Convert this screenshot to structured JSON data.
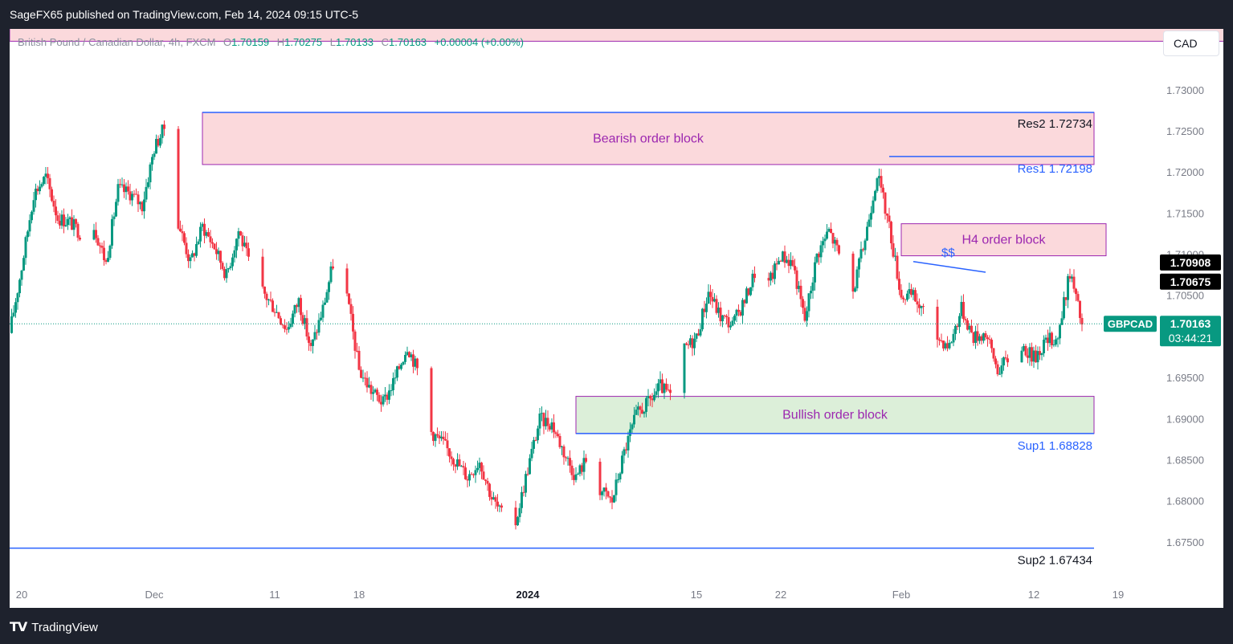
{
  "header": {
    "byline": "SageFX65 published on TradingView.com, Feb 14, 2024 09:15 UTC-5"
  },
  "footer": {
    "brand": "TradingView"
  },
  "toolbar": {
    "currency": "CAD"
  },
  "legend": {
    "instrument": "British Pound / Canadian Dollar, 4h, FXCM",
    "o_label": "O",
    "o": "1.70159",
    "h_label": "H",
    "h": "1.70275",
    "l_label": "L",
    "l": "1.70133",
    "c_label": "C",
    "c": "1.70163",
    "change": "+0.00004 (+0.00%)"
  },
  "colors": {
    "up": "#089981",
    "down": "#f23645",
    "bearish_zone": "#fbd9dc",
    "bullish_zone": "#dcefd9",
    "zone_border": "#9c27b0",
    "level_line": "#2962ff",
    "zone_text": "#9c27b0",
    "res_text": "#131722",
    "blue_text": "#2962ff"
  },
  "chart_data": {
    "type": "candlestick",
    "symbol": "GBPCAD",
    "timeframe": "4h",
    "ylim": [
      1.67,
      1.7375
    ],
    "y_ticks": [
      "1.67500",
      "1.68000",
      "1.68500",
      "1.69000",
      "1.69500",
      "1.70000",
      "1.70500",
      "1.71000",
      "1.71500",
      "1.72000",
      "1.72500",
      "1.73000"
    ],
    "x_range": [
      "2023-11-19",
      "2024-02-21"
    ],
    "x_ticks": [
      {
        "date": "2023-11-20",
        "label": "20",
        "bold": false
      },
      {
        "date": "2023-12-01",
        "label": "Dec",
        "bold": false
      },
      {
        "date": "2023-12-11",
        "label": "11",
        "bold": false
      },
      {
        "date": "2023-12-18",
        "label": "18",
        "bold": false
      },
      {
        "date": "2024-01-01",
        "label": "2024",
        "bold": true
      },
      {
        "date": "2024-01-15",
        "label": "15",
        "bold": false
      },
      {
        "date": "2024-01-22",
        "label": "22",
        "bold": false
      },
      {
        "date": "2024-02-01",
        "label": "Feb",
        "bold": false
      },
      {
        "date": "2024-02-12",
        "label": "12",
        "bold": false
      },
      {
        "date": "2024-02-19",
        "label": "19",
        "bold": false
      }
    ],
    "close_path": [
      [
        "2023-11-19",
        1.7005
      ],
      [
        "2023-11-20",
        1.7085
      ],
      [
        "2023-11-21",
        1.7175
      ],
      [
        "2023-11-22",
        1.7195
      ],
      [
        "2023-11-23",
        1.7145
      ],
      [
        "2023-11-24",
        1.714
      ],
      [
        "2023-11-25",
        1.7125
      ],
      [
        "2023-11-26",
        1.7135
      ],
      [
        "2023-11-27",
        1.709
      ],
      [
        "2023-11-28",
        1.718
      ],
      [
        "2023-11-29",
        1.7175
      ],
      [
        "2023-11-30",
        1.716
      ],
      [
        "2023-12-01",
        1.723
      ],
      [
        "2023-12-02",
        1.726
      ],
      [
        "2023-12-03",
        1.714
      ],
      [
        "2023-12-04",
        1.709
      ],
      [
        "2023-12-05",
        1.7135
      ],
      [
        "2023-12-06",
        1.711
      ],
      [
        "2023-12-07",
        1.7075
      ],
      [
        "2023-12-08",
        1.713
      ],
      [
        "2023-12-09",
        1.7085
      ],
      [
        "2023-12-10",
        1.7055
      ],
      [
        "2023-12-11",
        1.7035
      ],
      [
        "2023-12-12",
        1.701
      ],
      [
        "2023-12-13",
        1.7045
      ],
      [
        "2023-12-14",
        1.6985
      ],
      [
        "2023-12-15",
        1.7035
      ],
      [
        "2023-12-16",
        1.71
      ],
      [
        "2023-12-17",
        1.705
      ],
      [
        "2023-12-18",
        1.696
      ],
      [
        "2023-12-19",
        1.6935
      ],
      [
        "2023-12-20",
        1.692
      ],
      [
        "2023-12-21",
        1.695
      ],
      [
        "2023-12-22",
        1.699
      ],
      [
        "2023-12-23",
        1.6955
      ],
      [
        "2023-12-24",
        1.6885
      ],
      [
        "2023-12-25",
        1.687
      ],
      [
        "2023-12-26",
        1.685
      ],
      [
        "2023-12-27",
        1.683
      ],
      [
        "2023-12-28",
        1.685
      ],
      [
        "2023-12-29",
        1.6805
      ],
      [
        "2023-12-30",
        1.678
      ],
      [
        "2023-12-31",
        1.6775
      ],
      [
        "2024-01-01",
        1.684
      ],
      [
        "2024-01-02",
        1.69
      ],
      [
        "2024-01-03",
        1.6895
      ],
      [
        "2024-01-04",
        1.686
      ],
      [
        "2024-01-05",
        1.683
      ],
      [
        "2024-01-06",
        1.6855
      ],
      [
        "2024-01-07",
        1.6815
      ],
      [
        "2024-01-08",
        1.68
      ],
      [
        "2024-01-09",
        1.686
      ],
      [
        "2024-01-10",
        1.6905
      ],
      [
        "2024-01-11",
        1.692
      ],
      [
        "2024-01-12",
        1.694
      ],
      [
        "2024-01-13",
        1.6925
      ],
      [
        "2024-01-14",
        1.6985
      ],
      [
        "2024-01-15",
        1.7
      ],
      [
        "2024-01-16",
        1.7055
      ],
      [
        "2024-01-17",
        1.7025
      ],
      [
        "2024-01-18",
        1.7015
      ],
      [
        "2024-01-19",
        1.7045
      ],
      [
        "2024-01-20",
        1.7085
      ],
      [
        "2024-01-21",
        1.7065
      ],
      [
        "2024-01-22",
        1.71
      ],
      [
        "2024-01-23",
        1.709
      ],
      [
        "2024-01-24",
        1.702
      ],
      [
        "2024-01-25",
        1.71
      ],
      [
        "2024-01-26",
        1.713
      ],
      [
        "2024-01-27",
        1.7095
      ],
      [
        "2024-01-28",
        1.7055
      ],
      [
        "2024-01-29",
        1.712
      ],
      [
        "2024-01-30",
        1.72
      ],
      [
        "2024-01-31",
        1.7135
      ],
      [
        "2024-02-01",
        1.705
      ],
      [
        "2024-02-02",
        1.705
      ],
      [
        "2024-02-03",
        1.7025
      ],
      [
        "2024-02-04",
        1.7
      ],
      [
        "2024-02-05",
        1.699
      ],
      [
        "2024-02-06",
        1.7035
      ],
      [
        "2024-02-07",
        1.7
      ],
      [
        "2024-02-08",
        1.7005
      ],
      [
        "2024-02-09",
        1.696
      ],
      [
        "2024-02-10",
        1.6975
      ],
      [
        "2024-02-11",
        1.699
      ],
      [
        "2024-02-12",
        1.6975
      ],
      [
        "2024-02-13",
        1.6995
      ],
      [
        "2024-02-14",
        1.7
      ],
      [
        "2024-02-15",
        1.708
      ],
      [
        "2024-02-16",
        1.7015
      ]
    ],
    "zones": [
      {
        "name": "top-zone",
        "kind": "bearish",
        "x0": "2023-11-19",
        "x1": "2024-02-28",
        "y0": 1.736,
        "y1": 1.7385,
        "label": ""
      },
      {
        "name": "bearish-order-block",
        "kind": "bearish",
        "x0": "2023-12-05",
        "x1": "2024-02-17",
        "y0": 1.721,
        "y1": 1.72734,
        "label": "Bearish order block"
      },
      {
        "name": "h4-order-block",
        "kind": "bearish",
        "x0": "2024-02-01",
        "x1": "2024-02-18",
        "y0": 1.7099,
        "y1": 1.7138,
        "label": "H4 order block"
      },
      {
        "name": "bullish-order-block",
        "kind": "bullish",
        "x0": "2024-01-05",
        "x1": "2024-02-17",
        "y0": 1.68828,
        "y1": 1.6928,
        "label": "Bullish order block"
      }
    ],
    "levels": [
      {
        "name": "res2",
        "x0": "2023-12-05",
        "x1": "2024-02-17",
        "y": 1.72734,
        "label": "Res2 1.72734",
        "color": "#131722"
      },
      {
        "name": "res1",
        "x0": "2024-01-31",
        "x1": "2024-02-17",
        "y": 1.72198,
        "label": "Res1 1.72198",
        "color": "#2962ff"
      },
      {
        "name": "sup1",
        "x0": "2024-01-05",
        "x1": "2024-02-17",
        "y": 1.68828,
        "label": "Sup1 1.68828",
        "color": "#2962ff"
      },
      {
        "name": "sup2",
        "x0": "2023-11-19",
        "x1": "2024-02-17",
        "y": 1.67434,
        "label": "Sup2 1.67434",
        "color": "#131722"
      }
    ],
    "liquidity_line": {
      "x0": "2024-02-02",
      "y0": 1.7092,
      "x1": "2024-02-08",
      "y1": 1.7079,
      "label": "$$"
    },
    "top_line": {
      "x0": "2023-11-19",
      "x1": "2024-02-11",
      "y": 1.7375
    },
    "price_tags": [
      {
        "value": "1.70908",
        "y": 1.70908,
        "bg": "#000000"
      },
      {
        "value": "1.70675",
        "y": 1.70675,
        "bg": "#000000"
      }
    ],
    "current": {
      "symbol": "GBPCAD",
      "price": "1.70163",
      "countdown": "03:44:21",
      "y": 1.70163,
      "bg": "#089981"
    }
  }
}
